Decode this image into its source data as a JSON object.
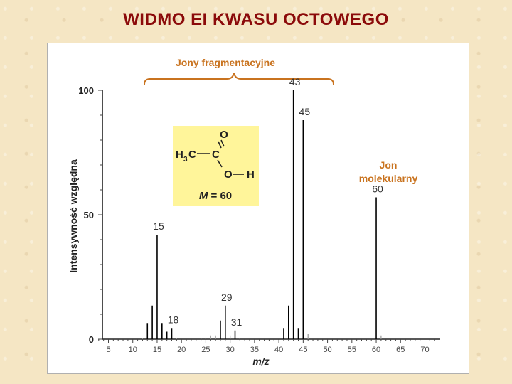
{
  "slide": {
    "title": "WIDMO EI KWASU OCTOWEGO"
  },
  "colors": {
    "title": "#8b0a0a",
    "annotation": "#c9731f",
    "peaks": "#000000",
    "minor_peaks": "#999999",
    "structure_bg": "#fff59a"
  },
  "chart_data": {
    "type": "bar",
    "subtype": "mass-spectrum",
    "title": "",
    "xlabel": "m/z",
    "ylabel": "Intensywność względna",
    "xlim": [
      2,
      73
    ],
    "ylim": [
      0,
      100
    ],
    "xticks": [
      5,
      10,
      15,
      20,
      25,
      30,
      35,
      40,
      45,
      50,
      55,
      60,
      65,
      70
    ],
    "yticks": [
      0,
      50,
      100
    ],
    "grid": false,
    "peaks": [
      {
        "mz": 12,
        "intensity": 0.5
      },
      {
        "mz": 13,
        "intensity": 6.5
      },
      {
        "mz": 14,
        "intensity": 13.5
      },
      {
        "mz": 15,
        "intensity": 42,
        "label": "15"
      },
      {
        "mz": 16,
        "intensity": 6.5
      },
      {
        "mz": 17,
        "intensity": 3
      },
      {
        "mz": 18,
        "intensity": 4.5,
        "label": "18"
      },
      {
        "mz": 19,
        "intensity": 0.4
      },
      {
        "mz": 24,
        "intensity": 0.5
      },
      {
        "mz": 25,
        "intensity": 0.6
      },
      {
        "mz": 26,
        "intensity": 1.5
      },
      {
        "mz": 27,
        "intensity": 1.5
      },
      {
        "mz": 28,
        "intensity": 7.5
      },
      {
        "mz": 29,
        "intensity": 13.5,
        "label": "29"
      },
      {
        "mz": 30,
        "intensity": 1.5
      },
      {
        "mz": 31,
        "intensity": 3.5,
        "label": "31"
      },
      {
        "mz": 32,
        "intensity": 0.5
      },
      {
        "mz": 41,
        "intensity": 4.5
      },
      {
        "mz": 42,
        "intensity": 13.5
      },
      {
        "mz": 43,
        "intensity": 100,
        "label": "43"
      },
      {
        "mz": 44,
        "intensity": 4.5
      },
      {
        "mz": 45,
        "intensity": 88,
        "label": "45"
      },
      {
        "mz": 46,
        "intensity": 2
      },
      {
        "mz": 60,
        "intensity": 57,
        "label": "60"
      },
      {
        "mz": 61,
        "intensity": 1.5
      }
    ],
    "annotations": {
      "fragment_ions": "Jony fragmentacyjne",
      "molecular_ion_line1": "Jon",
      "molecular_ion_line2": "molekularny"
    },
    "structure": {
      "carbonyl_o": "O",
      "methyl_h": "H",
      "methyl_sub": "3",
      "methyl_c": "C",
      "carboxyl_c": "C",
      "hydroxyl_o": "O",
      "hydroxyl_h": "H",
      "mass_symbol": "M",
      "mass_value": " = 60"
    }
  }
}
